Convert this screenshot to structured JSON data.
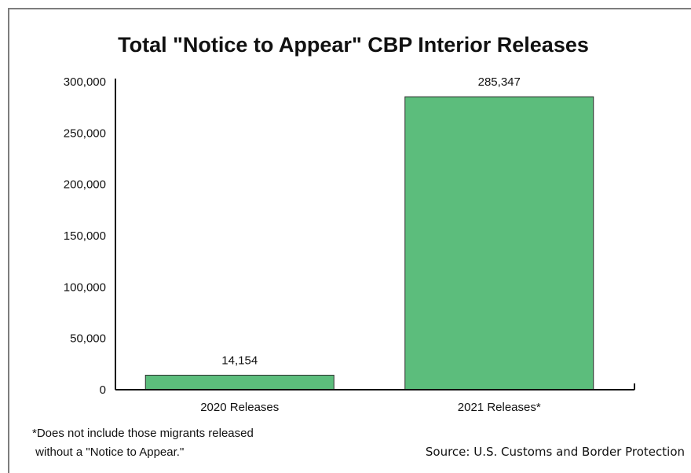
{
  "chart_data": {
    "type": "bar",
    "title": "Total \"Notice to Appear\" CBP Interior Releases",
    "xlabel": "",
    "ylabel": "",
    "categories": [
      "2020 Releases",
      "2021 Releases*"
    ],
    "values": [
      14154,
      285347
    ],
    "data_labels": [
      "14,154",
      "285,347"
    ],
    "ylim": [
      0,
      300000
    ],
    "yticks": [
      0,
      50000,
      100000,
      150000,
      200000,
      250000,
      300000
    ],
    "ytick_labels": [
      "0",
      "50,000",
      "100,000",
      "150,000",
      "200,000",
      "250,000",
      "300,000"
    ],
    "bar_color": "#5cbd7c",
    "bar_edge_color": "#2e2e2e",
    "grid": false,
    "legend": "none"
  },
  "footnote": {
    "line1": "*Does not include those migrants released",
    "line2": " without a \"Notice to Appear.\""
  },
  "source": "Source: U.S. Customs and Border Protection",
  "colors": {
    "frame": "#7d7d7d",
    "axis": "#111111",
    "text": "#111111"
  }
}
